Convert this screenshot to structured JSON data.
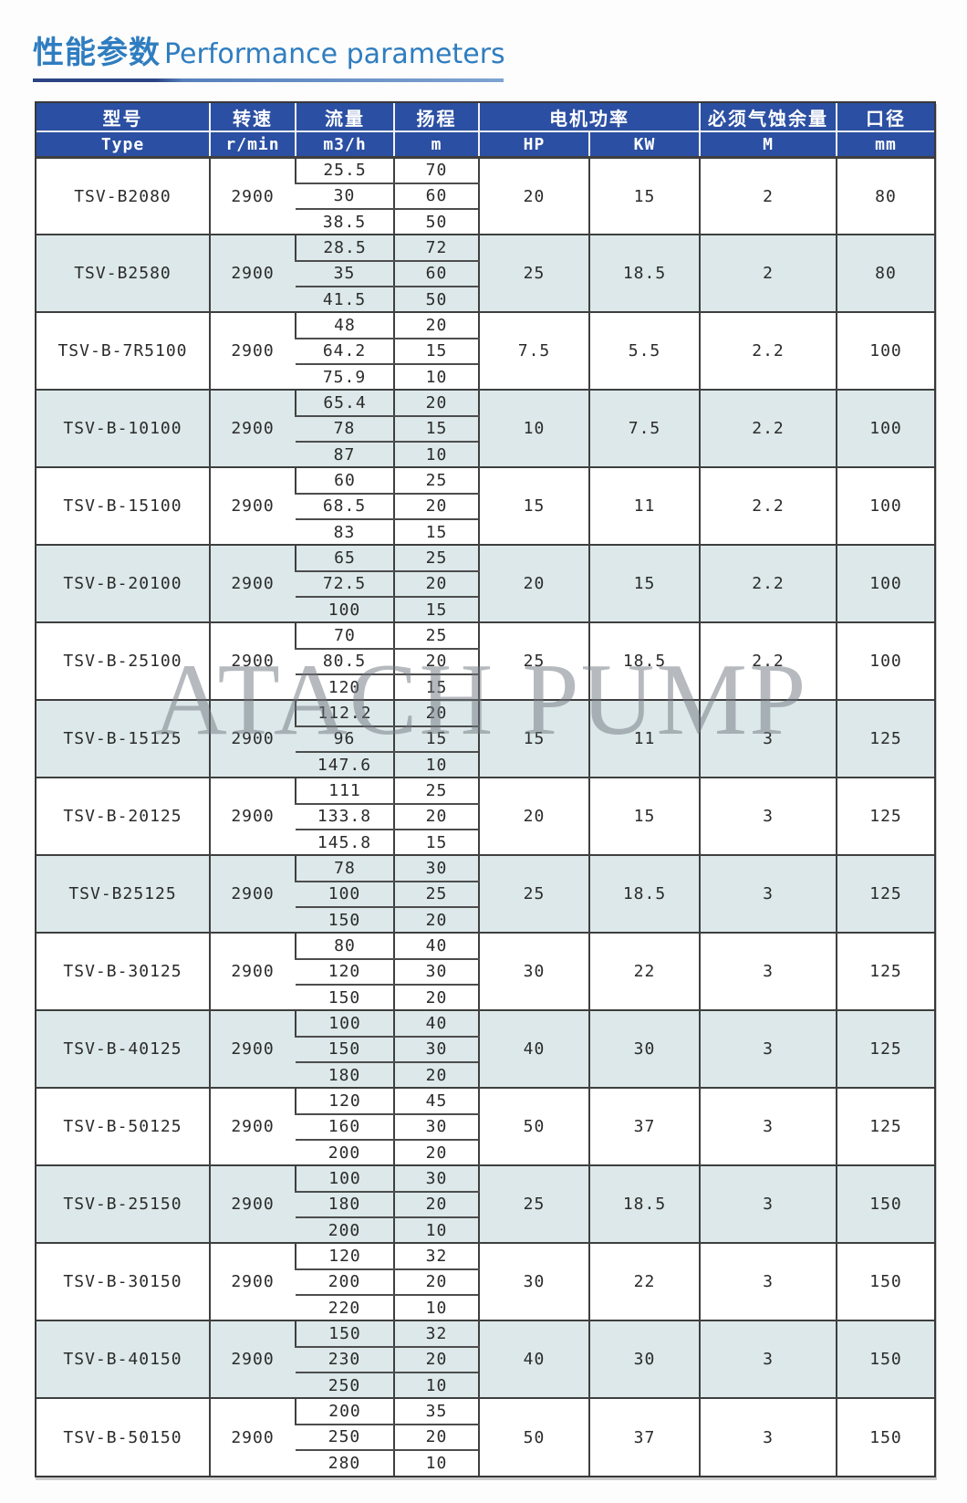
{
  "page": {
    "title_zh": "性能参数",
    "title_en": "Performance parameters",
    "watermark": "ATACH PUMP",
    "accent_blue": "#2f7dc0",
    "header_bg": "#2b4fa2",
    "row_alt_bg": "#dce8e9"
  },
  "table": {
    "header": {
      "type_zh": "型号",
      "type_en": "Type",
      "speed_zh": "转速",
      "speed_en": "r/min",
      "flow_zh": "流量",
      "flow_en": "m3/h",
      "head_zh": "扬程",
      "head_en": "m",
      "power_zh": "电机功率",
      "power_hp": "HP",
      "power_kw": "KW",
      "npsh_zh": "必须气蚀余量",
      "npsh_en": "M",
      "bore_zh": "口径",
      "bore_en": "mm"
    },
    "groups": [
      {
        "type": "TSV-B2080",
        "speed": "2900",
        "rows": [
          [
            "25.5",
            "70"
          ],
          [
            "30",
            "60"
          ],
          [
            "38.5",
            "50"
          ]
        ],
        "hp": "20",
        "kw": "15",
        "npsh": "2",
        "bore": "80"
      },
      {
        "type": "TSV-B2580",
        "speed": "2900",
        "rows": [
          [
            "28.5",
            "72"
          ],
          [
            "35",
            "60"
          ],
          [
            "41.5",
            "50"
          ]
        ],
        "hp": "25",
        "kw": "18.5",
        "npsh": "2",
        "bore": "80"
      },
      {
        "type": "TSV-B-7R5100",
        "speed": "2900",
        "rows": [
          [
            "48",
            "20"
          ],
          [
            "64.2",
            "15"
          ],
          [
            "75.9",
            "10"
          ]
        ],
        "hp": "7.5",
        "kw": "5.5",
        "npsh": "2.2",
        "bore": "100"
      },
      {
        "type": "TSV-B-10100",
        "speed": "2900",
        "rows": [
          [
            "65.4",
            "20"
          ],
          [
            "78",
            "15"
          ],
          [
            "87",
            "10"
          ]
        ],
        "hp": "10",
        "kw": "7.5",
        "npsh": "2.2",
        "bore": "100"
      },
      {
        "type": "TSV-B-15100",
        "speed": "2900",
        "rows": [
          [
            "60",
            "25"
          ],
          [
            "68.5",
            "20"
          ],
          [
            "83",
            "15"
          ]
        ],
        "hp": "15",
        "kw": "11",
        "npsh": "2.2",
        "bore": "100"
      },
      {
        "type": "TSV-B-20100",
        "speed": "2900",
        "rows": [
          [
            "65",
            "25"
          ],
          [
            "72.5",
            "20"
          ],
          [
            "100",
            "15"
          ]
        ],
        "hp": "20",
        "kw": "15",
        "npsh": "2.2",
        "bore": "100"
      },
      {
        "type": "TSV-B-25100",
        "speed": "2900",
        "rows": [
          [
            "70",
            "25"
          ],
          [
            "80.5",
            "20"
          ],
          [
            "120",
            "15"
          ]
        ],
        "hp": "25",
        "kw": "18.5",
        "npsh": "2.2",
        "bore": "100"
      },
      {
        "type": "TSV-B-15125",
        "speed": "2900",
        "rows": [
          [
            "112.2",
            "20"
          ],
          [
            "96",
            "15"
          ],
          [
            "147.6",
            "10"
          ]
        ],
        "hp": "15",
        "kw": "11",
        "npsh": "3",
        "bore": "125"
      },
      {
        "type": "TSV-B-20125",
        "speed": "2900",
        "rows": [
          [
            "111",
            "25"
          ],
          [
            "133.8",
            "20"
          ],
          [
            "145.8",
            "15"
          ]
        ],
        "hp": "20",
        "kw": "15",
        "npsh": "3",
        "bore": "125"
      },
      {
        "type": "TSV-B25125",
        "speed": "2900",
        "rows": [
          [
            "78",
            "30"
          ],
          [
            "100",
            "25"
          ],
          [
            "150",
            "20"
          ]
        ],
        "hp": "25",
        "kw": "18.5",
        "npsh": "3",
        "bore": "125"
      },
      {
        "type": "TSV-B-30125",
        "speed": "2900",
        "rows": [
          [
            "80",
            "40"
          ],
          [
            "120",
            "30"
          ],
          [
            "150",
            "20"
          ]
        ],
        "hp": "30",
        "kw": "22",
        "npsh": "3",
        "bore": "125"
      },
      {
        "type": "TSV-B-40125",
        "speed": "2900",
        "rows": [
          [
            "100",
            "40"
          ],
          [
            "150",
            "30"
          ],
          [
            "180",
            "20"
          ]
        ],
        "hp": "40",
        "kw": "30",
        "npsh": "3",
        "bore": "125"
      },
      {
        "type": "TSV-B-50125",
        "speed": "2900",
        "rows": [
          [
            "120",
            "45"
          ],
          [
            "160",
            "30"
          ],
          [
            "200",
            "20"
          ]
        ],
        "hp": "50",
        "kw": "37",
        "npsh": "3",
        "bore": "125"
      },
      {
        "type": "TSV-B-25150",
        "speed": "2900",
        "rows": [
          [
            "100",
            "30"
          ],
          [
            "180",
            "20"
          ],
          [
            "200",
            "10"
          ]
        ],
        "hp": "25",
        "kw": "18.5",
        "npsh": "3",
        "bore": "150"
      },
      {
        "type": "TSV-B-30150",
        "speed": "2900",
        "rows": [
          [
            "120",
            "32"
          ],
          [
            "200",
            "20"
          ],
          [
            "220",
            "10"
          ]
        ],
        "hp": "30",
        "kw": "22",
        "npsh": "3",
        "bore": "150"
      },
      {
        "type": "TSV-B-40150",
        "speed": "2900",
        "rows": [
          [
            "150",
            "32"
          ],
          [
            "230",
            "20"
          ],
          [
            "250",
            "10"
          ]
        ],
        "hp": "40",
        "kw": "30",
        "npsh": "3",
        "bore": "150"
      },
      {
        "type": "TSV-B-50150",
        "speed": "2900",
        "rows": [
          [
            "200",
            "35"
          ],
          [
            "250",
            "20"
          ],
          [
            "280",
            "10"
          ]
        ],
        "hp": "50",
        "kw": "37",
        "npsh": "3",
        "bore": "150"
      }
    ]
  }
}
